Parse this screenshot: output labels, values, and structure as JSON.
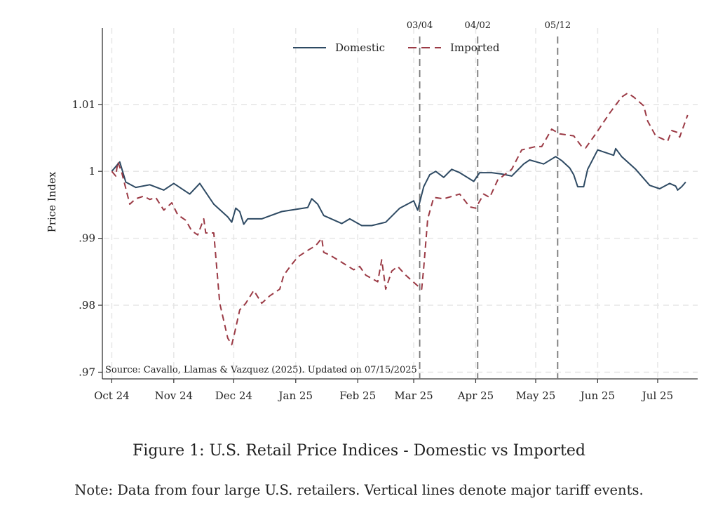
{
  "chart_data": {
    "type": "line",
    "title": "",
    "xlabel": "",
    "ylabel": "Price Index",
    "xlim": [
      "2024-09-27",
      "2025-07-21"
    ],
    "ylim": [
      0.969,
      1.0214
    ],
    "grid": true,
    "legend_placement": "top-center",
    "x_ticks": [
      {
        "date": "2024-10-01",
        "label": "Oct 24"
      },
      {
        "date": "2024-11-01",
        "label": "Nov 24"
      },
      {
        "date": "2024-12-01",
        "label": "Dec 24"
      },
      {
        "date": "2025-01-01",
        "label": "Jan 25"
      },
      {
        "date": "2025-02-01",
        "label": "Feb 25"
      },
      {
        "date": "2025-03-01",
        "label": "Mar 25"
      },
      {
        "date": "2025-04-01",
        "label": "Apr 25"
      },
      {
        "date": "2025-05-01",
        "label": "May 25"
      },
      {
        "date": "2025-06-01",
        "label": "Jun 25"
      },
      {
        "date": "2025-07-01",
        "label": "Jul 25"
      }
    ],
    "y_ticks": [
      {
        "value": 0.97,
        "label": ".97"
      },
      {
        "value": 0.98,
        "label": ".98"
      },
      {
        "value": 0.99,
        "label": ".99"
      },
      {
        "value": 1.0,
        "label": "1"
      },
      {
        "value": 1.01,
        "label": "1.01"
      }
    ],
    "events": [
      {
        "date": "2025-03-04",
        "label": "03/04"
      },
      {
        "date": "2025-04-02",
        "label": "04/02"
      },
      {
        "date": "2025-05-12",
        "label": "05/12"
      }
    ],
    "annotation": "Source: Cavallo, Llamas & Vazquez (2025). Updated on 07/15/2025",
    "series": [
      {
        "name": "Domestic",
        "color": "#2e4a63",
        "style": "solid",
        "points": [
          [
            "2024-10-01",
            1.0
          ],
          [
            "2024-10-05",
            1.0014
          ],
          [
            "2024-10-08",
            0.9984
          ],
          [
            "2024-10-13",
            0.9976
          ],
          [
            "2024-10-20",
            0.998
          ],
          [
            "2024-10-27",
            0.9972
          ],
          [
            "2024-11-01",
            0.9982
          ],
          [
            "2024-11-09",
            0.9966
          ],
          [
            "2024-11-14",
            0.9982
          ],
          [
            "2024-11-21",
            0.9951
          ],
          [
            "2024-11-28",
            0.9932
          ],
          [
            "2024-11-30",
            0.9924
          ],
          [
            "2024-12-02",
            0.9945
          ],
          [
            "2024-12-04",
            0.994
          ],
          [
            "2024-12-06",
            0.9921
          ],
          [
            "2024-12-08",
            0.9929
          ],
          [
            "2024-12-15",
            0.9929
          ],
          [
            "2024-12-25",
            0.994
          ],
          [
            "2025-01-07",
            0.9946
          ],
          [
            "2025-01-09",
            0.9959
          ],
          [
            "2025-01-12",
            0.9951
          ],
          [
            "2025-01-15",
            0.9934
          ],
          [
            "2025-01-24",
            0.9922
          ],
          [
            "2025-01-28",
            0.9929
          ],
          [
            "2025-02-03",
            0.9919
          ],
          [
            "2025-02-08",
            0.9919
          ],
          [
            "2025-02-15",
            0.9924
          ],
          [
            "2025-02-22",
            0.9945
          ],
          [
            "2025-03-01",
            0.9956
          ],
          [
            "2025-03-03",
            0.9942
          ],
          [
            "2025-03-06",
            0.9977
          ],
          [
            "2025-03-09",
            0.9995
          ],
          [
            "2025-03-12",
            1.0
          ],
          [
            "2025-03-16",
            0.9991
          ],
          [
            "2025-03-20",
            1.0003
          ],
          [
            "2025-03-24",
            0.9998
          ],
          [
            "2025-03-31",
            0.9985
          ],
          [
            "2025-04-03",
            0.9998
          ],
          [
            "2025-04-09",
            0.9998
          ],
          [
            "2025-04-14",
            0.9996
          ],
          [
            "2025-04-19",
            0.9993
          ],
          [
            "2025-04-25",
            1.0011
          ],
          [
            "2025-04-28",
            1.0017
          ],
          [
            "2025-05-05",
            1.0011
          ],
          [
            "2025-05-11",
            1.0022
          ],
          [
            "2025-05-14",
            1.0016
          ],
          [
            "2025-05-18",
            1.0005
          ],
          [
            "2025-05-20",
            0.9995
          ],
          [
            "2025-05-22",
            0.9977
          ],
          [
            "2025-05-25",
            0.9977
          ],
          [
            "2025-05-27",
            1.0003
          ],
          [
            "2025-06-01",
            1.0032
          ],
          [
            "2025-06-09",
            1.0024
          ],
          [
            "2025-06-10",
            1.0034
          ],
          [
            "2025-06-13",
            1.0022
          ],
          [
            "2025-06-20",
            1.0003
          ],
          [
            "2025-06-27",
            0.9979
          ],
          [
            "2025-07-02",
            0.9974
          ],
          [
            "2025-07-07",
            0.9982
          ],
          [
            "2025-07-10",
            0.9978
          ],
          [
            "2025-07-11",
            0.9972
          ],
          [
            "2025-07-13",
            0.9977
          ],
          [
            "2025-07-15",
            0.9984
          ]
        ]
      },
      {
        "name": "Imported",
        "color": "#9b3a45",
        "style": "dashed",
        "points": [
          [
            "2024-10-01",
            1.0
          ],
          [
            "2024-10-03",
            0.9993
          ],
          [
            "2024-10-04",
            1.0014
          ],
          [
            "2024-10-06",
            0.9998
          ],
          [
            "2024-10-10",
            0.9951
          ],
          [
            "2024-10-13",
            0.9959
          ],
          [
            "2024-10-17",
            0.9963
          ],
          [
            "2024-10-20",
            0.9958
          ],
          [
            "2024-10-23",
            0.9961
          ],
          [
            "2024-10-27",
            0.9942
          ],
          [
            "2024-10-31",
            0.9953
          ],
          [
            "2024-11-03",
            0.9935
          ],
          [
            "2024-11-07",
            0.9927
          ],
          [
            "2024-11-10",
            0.9911
          ],
          [
            "2024-11-13",
            0.9905
          ],
          [
            "2024-11-16",
            0.9929
          ],
          [
            "2024-11-17",
            0.9908
          ],
          [
            "2024-11-21",
            0.9908
          ],
          [
            "2024-11-24",
            0.9803
          ],
          [
            "2024-11-28",
            0.9751
          ],
          [
            "2024-11-30",
            0.9741
          ],
          [
            "2024-12-01",
            0.9753
          ],
          [
            "2024-12-04",
            0.9793
          ],
          [
            "2024-12-07",
            0.9803
          ],
          [
            "2024-12-11",
            0.9822
          ],
          [
            "2024-12-15",
            0.9803
          ],
          [
            "2024-12-19",
            0.9814
          ],
          [
            "2024-12-24",
            0.9824
          ],
          [
            "2024-12-26",
            0.9845
          ],
          [
            "2024-12-30",
            0.9861
          ],
          [
            "2025-01-02",
            0.9872
          ],
          [
            "2025-01-07",
            0.9882
          ],
          [
            "2025-01-11",
            0.9889
          ],
          [
            "2025-01-14",
            0.99
          ],
          [
            "2025-01-15",
            0.9879
          ],
          [
            "2025-01-18",
            0.9875
          ],
          [
            "2025-01-23",
            0.9866
          ],
          [
            "2025-01-30",
            0.9853
          ],
          [
            "2025-02-02",
            0.9858
          ],
          [
            "2025-02-05",
            0.9845
          ],
          [
            "2025-02-11",
            0.9835
          ],
          [
            "2025-02-13",
            0.9868
          ],
          [
            "2025-02-15",
            0.9824
          ],
          [
            "2025-02-18",
            0.9851
          ],
          [
            "2025-02-21",
            0.9858
          ],
          [
            "2025-02-25",
            0.9845
          ],
          [
            "2025-03-03",
            0.9829
          ],
          [
            "2025-03-05",
            0.9824
          ],
          [
            "2025-03-06",
            0.9856
          ],
          [
            "2025-03-08",
            0.9929
          ],
          [
            "2025-03-11",
            0.9961
          ],
          [
            "2025-03-16",
            0.9959
          ],
          [
            "2025-03-24",
            0.9966
          ],
          [
            "2025-03-29",
            0.9947
          ],
          [
            "2025-04-01",
            0.9945
          ],
          [
            "2025-04-05",
            0.9966
          ],
          [
            "2025-04-08",
            0.9961
          ],
          [
            "2025-04-12",
            0.9987
          ],
          [
            "2025-04-19",
            1.0003
          ],
          [
            "2025-04-24",
            1.0032
          ],
          [
            "2025-05-01",
            1.0037
          ],
          [
            "2025-05-04",
            1.0037
          ],
          [
            "2025-05-09",
            1.0063
          ],
          [
            "2025-05-13",
            1.0056
          ],
          [
            "2025-05-20",
            1.0053
          ],
          [
            "2025-05-24",
            1.0037
          ],
          [
            "2025-05-26",
            1.0035
          ],
          [
            "2025-05-31",
            1.0056
          ],
          [
            "2025-06-07",
            1.0087
          ],
          [
            "2025-06-13",
            1.0111
          ],
          [
            "2025-06-16",
            1.0117
          ],
          [
            "2025-06-19",
            1.0111
          ],
          [
            "2025-06-24",
            1.0098
          ],
          [
            "2025-06-26",
            1.0075
          ],
          [
            "2025-06-30",
            1.0053
          ],
          [
            "2025-07-06",
            1.0045
          ],
          [
            "2025-07-08",
            1.0061
          ],
          [
            "2025-07-11",
            1.0058
          ],
          [
            "2025-07-12",
            1.0051
          ],
          [
            "2025-07-16",
            1.0084
          ]
        ]
      }
    ]
  },
  "caption": {
    "figure": "Figure 1: U.S. Retail Price Indices - Domestic vs Imported",
    "note": "Note: Data from four large U.S. retailers. Vertical lines denote major tariff events."
  }
}
